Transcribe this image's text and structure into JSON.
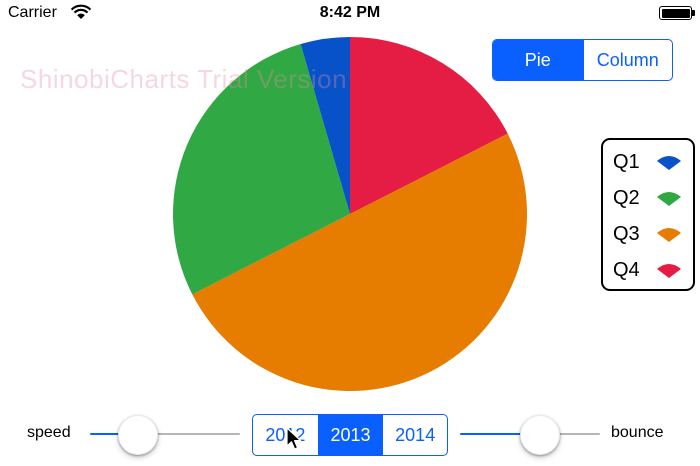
{
  "status_bar": {
    "carrier": "Carrier",
    "time": "8:42 PM"
  },
  "watermark": "ShinobiCharts Trial Version",
  "chart_type_control": {
    "options": [
      {
        "label": "Pie",
        "selected": true
      },
      {
        "label": "Column",
        "selected": false
      }
    ]
  },
  "legend": {
    "items": [
      {
        "label": "Q1",
        "color": "#0752c8"
      },
      {
        "label": "Q2",
        "color": "#30a844"
      },
      {
        "label": "Q3",
        "color": "#e67c00"
      },
      {
        "label": "Q4",
        "color": "#e51c44"
      }
    ]
  },
  "chart_data": {
    "type": "pie",
    "categories": [
      "Q1",
      "Q2",
      "Q3",
      "Q4"
    ],
    "values": [
      4.5,
      28,
      50,
      17.5
    ],
    "colors": [
      "#0752c8",
      "#30a844",
      "#e67c00",
      "#e51c44"
    ],
    "legend_position": "right"
  },
  "year_control": {
    "options": [
      {
        "label": "2012",
        "selected": false
      },
      {
        "label": "2013",
        "selected": true
      },
      {
        "label": "2014",
        "selected": false
      }
    ]
  },
  "speed_slider": {
    "label": "speed",
    "value": 0.25
  },
  "bounce_slider": {
    "label": "bounce",
    "value": 0.6
  },
  "colors": {
    "accent": "#0a60ff",
    "track_inactive": "#b6b6b6"
  }
}
